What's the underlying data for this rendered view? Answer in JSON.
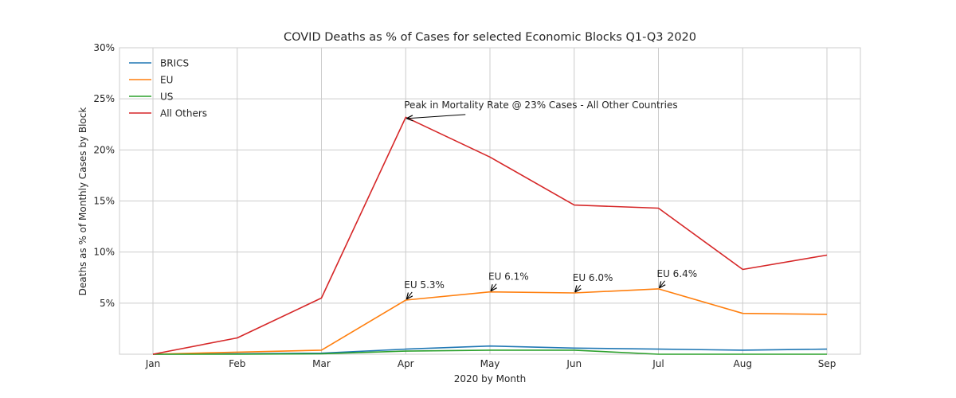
{
  "chart_data": {
    "type": "line",
    "title": "COVID Deaths as % of Cases for selected Economic Blocks Q1-Q3 2020",
    "xlabel": "2020 by Month",
    "ylabel": "Deaths as % of Monthly Cases by Block",
    "categories": [
      "Jan",
      "Feb",
      "Mar",
      "Apr",
      "May",
      "Jun",
      "Jul",
      "Aug",
      "Sep"
    ],
    "yticks": [
      5,
      10,
      15,
      20,
      25,
      30
    ],
    "ytick_labels": [
      "5%",
      "10%",
      "15%",
      "20%",
      "25%",
      "30%"
    ],
    "ylim": [
      0,
      30
    ],
    "grid": true,
    "legend_position": "top-left",
    "series": [
      {
        "name": "BRICS",
        "color": "#1f77b4",
        "values": [
          0,
          0.05,
          0.1,
          0.5,
          0.8,
          0.6,
          0.5,
          0.4,
          0.5
        ]
      },
      {
        "name": "EU",
        "color": "#ff7f0e",
        "values": [
          0,
          0.2,
          0.4,
          5.3,
          6.1,
          6.0,
          6.4,
          4.0,
          3.9
        ]
      },
      {
        "name": "US",
        "color": "#2ca02c",
        "values": [
          0,
          0,
          0.05,
          0.3,
          0.4,
          0.4,
          0.0,
          0.0,
          0.0
        ]
      },
      {
        "name": "All Others",
        "color": "#d62728",
        "values": [
          0,
          1.6,
          5.5,
          23.2,
          19.3,
          14.6,
          14.3,
          8.3,
          9.7
        ]
      }
    ],
    "annotations": [
      {
        "text": "Peak in Mortality Rate @ 23% Cases - All Other Countries",
        "x": "Apr",
        "y": 23.0
      },
      {
        "text": "EU 5.3%",
        "x": "Apr",
        "y": 5.3
      },
      {
        "text": "EU 6.1%",
        "x": "May",
        "y": 6.1
      },
      {
        "text": "EU 6.0%",
        "x": "Jun",
        "y": 6.0
      },
      {
        "text": "EU 6.4%",
        "x": "Jul",
        "y": 6.4
      }
    ]
  }
}
